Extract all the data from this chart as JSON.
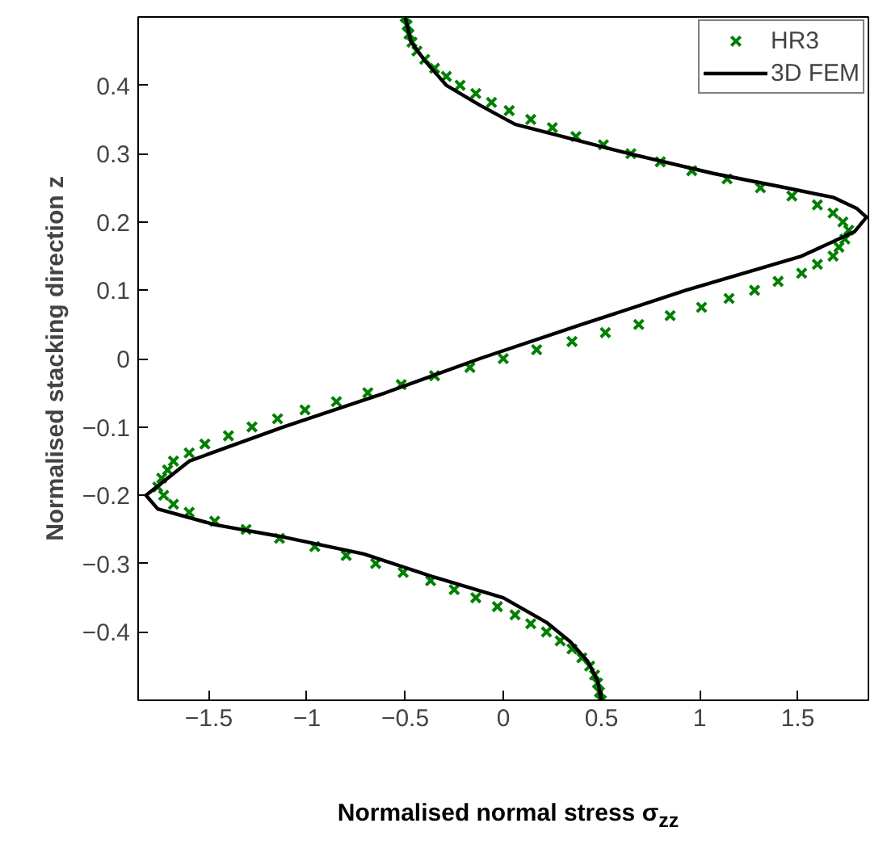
{
  "chart_data": {
    "type": "line",
    "xlabel": "Normalised normal stress σ$_{zz}$",
    "ylabel": "Normalised stacking direction z",
    "xlim": [
      -1.86,
      1.86
    ],
    "ylim": [
      -0.5,
      0.5
    ],
    "xticks": [
      {
        "value": -1.5,
        "label": "−1.5"
      },
      {
        "value": -1,
        "label": "−1"
      },
      {
        "value": -0.5,
        "label": "−0.5"
      },
      0,
      0.5,
      1,
      1.5
    ],
    "yticks": [
      {
        "value": -0.4,
        "label": "−0.4"
      },
      {
        "value": -0.3,
        "label": "−0.3"
      },
      {
        "value": -0.2,
        "label": "−0.2"
      },
      {
        "value": -0.1,
        "label": "−0.1"
      },
      0,
      0.1,
      0.2,
      0.3,
      0.4
    ],
    "grid": false,
    "legend": "top right",
    "series": [
      {
        "name": "HR3",
        "type": "scatter",
        "marker": "cross",
        "color": "#008000",
        "x": [
          -0.5,
          -0.49,
          -0.48,
          -0.465,
          -0.44,
          -0.4,
          -0.35,
          -0.29,
          -0.22,
          -0.14,
          -0.06,
          0.03,
          0.14,
          0.25,
          0.37,
          0.51,
          0.65,
          0.8,
          0.96,
          1.14,
          1.31,
          1.47,
          1.6,
          1.68,
          1.73,
          1.76,
          1.74,
          1.71,
          1.68,
          1.6,
          1.52,
          1.4,
          1.28,
          1.15,
          1.01,
          0.85,
          0.69,
          0.52,
          0.35,
          0.17,
          0,
          -0.17,
          -0.35,
          -0.52,
          -0.69,
          -0.85,
          -1.01,
          -1.15,
          -1.28,
          -1.4,
          -1.52,
          -1.6,
          -1.68,
          -1.71,
          -1.74,
          -1.76,
          -1.73,
          -1.68,
          -1.6,
          -1.47,
          -1.31,
          -1.14,
          -0.96,
          -0.8,
          -0.65,
          -0.51,
          -0.37,
          -0.25,
          -0.14,
          -0.03,
          0.06,
          0.14,
          0.22,
          0.29,
          0.35,
          0.4,
          0.44,
          0.465,
          0.48,
          0.49,
          0.5
        ],
        "values": [
          0.5,
          0.488,
          0.475,
          0.463,
          0.45,
          0.438,
          0.425,
          0.413,
          0.4,
          0.388,
          0.375,
          0.363,
          0.35,
          0.338,
          0.325,
          0.313,
          0.3,
          0.288,
          0.275,
          0.263,
          0.25,
          0.238,
          0.225,
          0.213,
          0.2,
          0.188,
          0.175,
          0.163,
          0.15,
          0.138,
          0.125,
          0.113,
          0.1,
          0.088,
          0.075,
          0.063,
          0.05,
          0.038,
          0.025,
          0.013,
          0,
          -0.013,
          -0.025,
          -0.038,
          -0.05,
          -0.063,
          -0.075,
          -0.088,
          -0.1,
          -0.113,
          -0.125,
          -0.138,
          -0.15,
          -0.163,
          -0.175,
          -0.188,
          -0.2,
          -0.213,
          -0.225,
          -0.238,
          -0.25,
          -0.263,
          -0.275,
          -0.288,
          -0.3,
          -0.313,
          -0.325,
          -0.338,
          -0.35,
          -0.363,
          -0.375,
          -0.388,
          -0.4,
          -0.413,
          -0.425,
          -0.438,
          -0.45,
          -0.463,
          -0.475,
          -0.488,
          -0.5
        ]
      },
      {
        "name": "3D FEM",
        "line_style": "solid",
        "color": "#000000",
        "x": [
          -0.5,
          -0.47,
          -0.4,
          -0.29,
          -0.12,
          0.06,
          0.64,
          1.07,
          1.44,
          1.68,
          1.8,
          1.85,
          1.79,
          1.52,
          0.93,
          0.4,
          -0.12,
          -0.6,
          -1.12,
          -1.6,
          -1.82,
          -1.76,
          -1.47,
          -1.14,
          -0.71,
          -0.35,
          0,
          0.22,
          0.34,
          0.43,
          0.48,
          0.5
        ],
        "values": [
          0.5,
          0.464,
          0.436,
          0.4,
          0.371,
          0.343,
          0.3,
          0.271,
          0.25,
          0.236,
          0.22,
          0.207,
          0.186,
          0.15,
          0.1,
          0.05,
          0,
          -0.05,
          -0.1,
          -0.15,
          -0.2,
          -0.22,
          -0.243,
          -0.26,
          -0.286,
          -0.32,
          -0.35,
          -0.386,
          -0.414,
          -0.443,
          -0.471,
          -0.5
        ]
      }
    ]
  }
}
